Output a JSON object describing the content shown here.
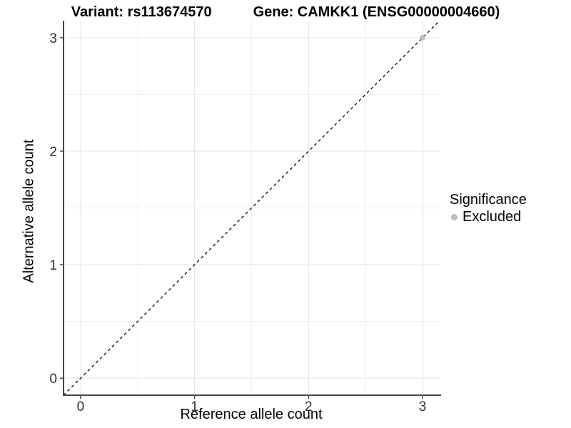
{
  "chart_data": {
    "type": "scatter",
    "title_variant": "Variant: rs113674570",
    "title_gene": "Gene: CAMKK1 (ENSG00000004660)",
    "xlabel": "Reference allele count",
    "ylabel": "Alternative allele count",
    "x_ticks": [
      0,
      1,
      2,
      3
    ],
    "y_ticks": [
      0,
      1,
      2,
      3
    ],
    "grid_minor_x": [
      0.5,
      1.5,
      2.5
    ],
    "grid_minor_y": [
      0.5,
      1.5,
      2.5
    ],
    "xlim": [
      -0.15,
      3.15
    ],
    "ylim": [
      -0.15,
      3.15
    ],
    "grid": true,
    "identity_line": {
      "style": "dashed",
      "slope": 1,
      "intercept": 0,
      "color": "#000000"
    },
    "series": [
      {
        "name": "Excluded",
        "color": "#bdbdbd",
        "points": [
          {
            "x": 3,
            "y": 3
          }
        ]
      }
    ],
    "legend": {
      "title": "Significance",
      "position": "right",
      "entries": [
        {
          "label": "Excluded",
          "color": "#bdbdbd"
        }
      ]
    }
  },
  "style_colors": {
    "axis_line": "#474747",
    "tick_text": "#303030",
    "grid_major": "#e3e3e3",
    "grid_minor": "#f0f0f0"
  }
}
